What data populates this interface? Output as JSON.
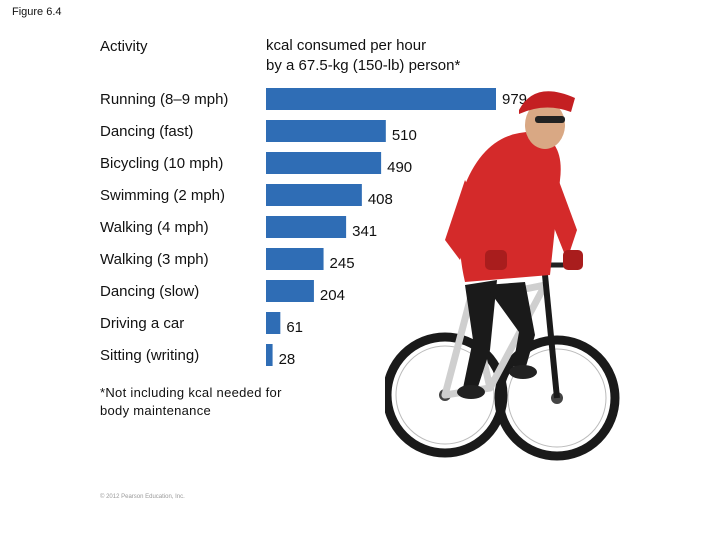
{
  "figure_label": "Figure 6.4",
  "header": {
    "activity": "Activity",
    "kcal_line1": "kcal consumed per hour",
    "kcal_line2": "by a 67.5-kg (150-lb) person*"
  },
  "footnote": {
    "line1": "*Not including kcal needed for",
    "line2": "body maintenance"
  },
  "copyright": "© 2012 Pearson Education, Inc.",
  "colors": {
    "bar": "#2f6db5",
    "jersey": "#d42a2a",
    "helmet": "#c41f22"
  },
  "photo": {
    "subject": "cyclist-on-mountain-bike"
  },
  "chart_data": {
    "type": "bar",
    "orientation": "horizontal",
    "categories": [
      "Running (8–9 mph)",
      "Dancing (fast)",
      "Bicycling (10 mph)",
      "Swimming (2 mph)",
      "Walking (4 mph)",
      "Walking (3 mph)",
      "Dancing (slow)",
      "Driving a car",
      "Sitting (writing)"
    ],
    "values": [
      979,
      510,
      490,
      408,
      341,
      245,
      204,
      61,
      28
    ],
    "title": "",
    "xlabel": "kcal consumed per hour by a 67.5-kg (150-lb) person*",
    "ylabel": "Activity",
    "xlim": [
      0,
      979
    ],
    "grid": false,
    "legend": "none"
  }
}
